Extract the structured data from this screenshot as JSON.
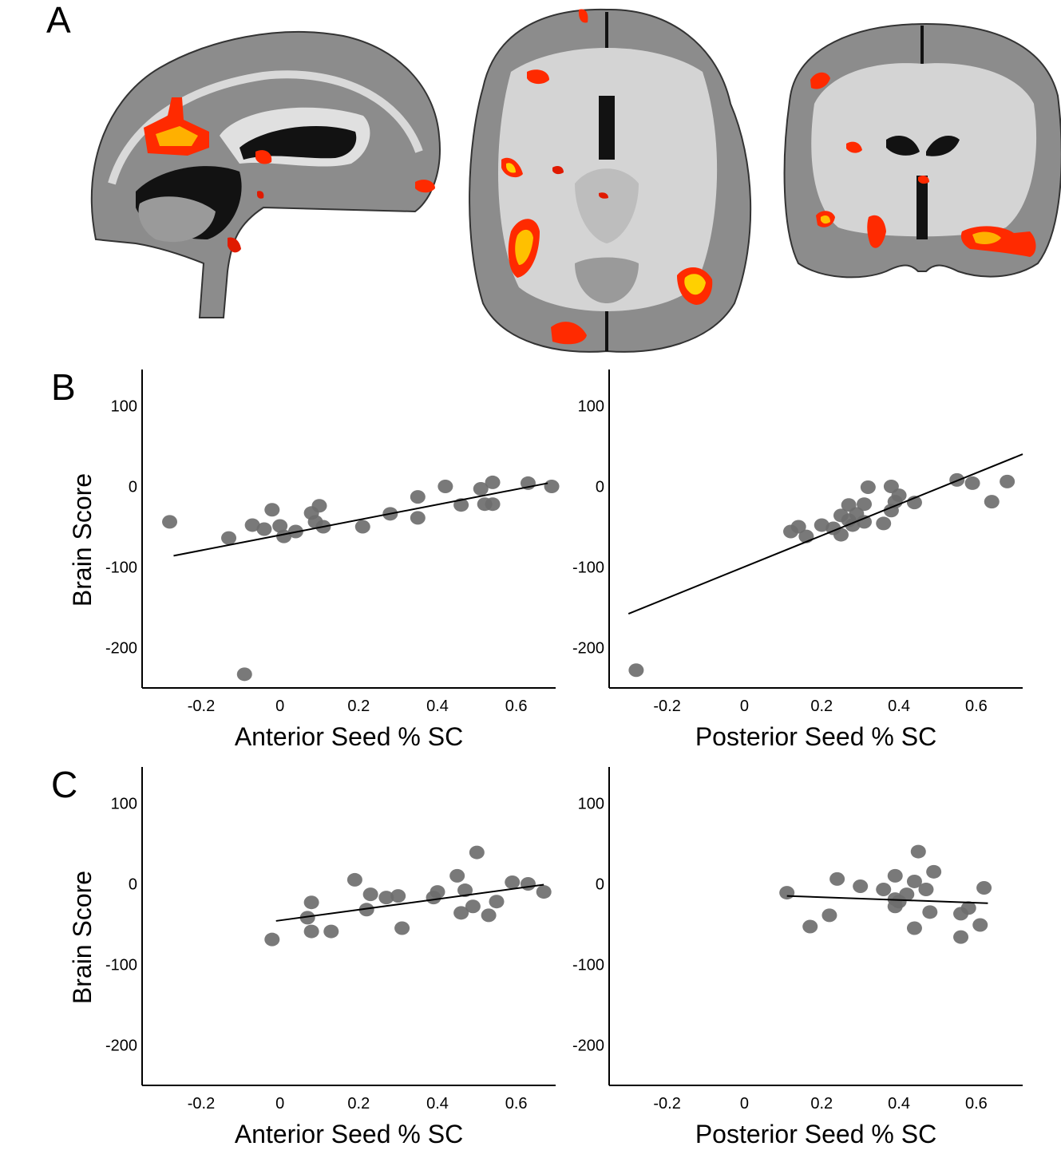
{
  "panels": {
    "a": "A",
    "b": "B",
    "c": "C"
  },
  "colors": {
    "point": "#6e6e6e",
    "line": "#000000",
    "axis": "#000000",
    "brain_fill": "#8c8c8c",
    "brain_white": "#d9d9d9",
    "brain_dark": "#121212",
    "activation_hot": "#ff2a00",
    "activation_core": "#ffd000"
  },
  "chart_data": [
    {
      "id": "b-left",
      "type": "scatter",
      "xlabel": "Anterior Seed % SC",
      "ylabel": "Brain Score",
      "xlim": [
        -0.35,
        0.7
      ],
      "ylim": [
        -250,
        145
      ],
      "xticks": [
        -0.2,
        0,
        0.2,
        0.4,
        0.6
      ],
      "xtick_labels": [
        "-0.2",
        "0",
        "0.2",
        "0.4",
        "0.6"
      ],
      "yticks": [
        100,
        0,
        -100,
        -200
      ],
      "ytick_labels": [
        "100",
        "0",
        "-100",
        "-200"
      ],
      "points": [
        [
          -0.28,
          -44
        ],
        [
          -0.13,
          -64
        ],
        [
          -0.09,
          -233
        ],
        [
          -0.07,
          -48
        ],
        [
          -0.04,
          -53
        ],
        [
          -0.02,
          -29
        ],
        [
          0,
          -49
        ],
        [
          0.01,
          -62
        ],
        [
          0.04,
          -56
        ],
        [
          0.08,
          -33
        ],
        [
          0.09,
          -44
        ],
        [
          0.1,
          -24
        ],
        [
          0.11,
          -50
        ],
        [
          0.21,
          -50
        ],
        [
          0.28,
          -34
        ],
        [
          0.35,
          -13
        ],
        [
          0.35,
          -39
        ],
        [
          0.42,
          0
        ],
        [
          0.46,
          -23
        ],
        [
          0.51,
          -3
        ],
        [
          0.52,
          -22
        ],
        [
          0.54,
          -22
        ],
        [
          0.54,
          5
        ],
        [
          0.63,
          4
        ],
        [
          0.69,
          0
        ]
      ],
      "fit": [
        [
          -0.27,
          -86
        ],
        [
          0.68,
          4
        ]
      ]
    },
    {
      "id": "b-right",
      "type": "scatter",
      "xlabel": "Posterior Seed % SC",
      "ylabel": "",
      "xlim": [
        -0.35,
        0.72
      ],
      "ylim": [
        -250,
        145
      ],
      "xticks": [
        -0.2,
        0,
        0.2,
        0.4,
        0.6
      ],
      "xtick_labels": [
        "-0.2",
        "0",
        "0.2",
        "0.4",
        "0.6"
      ],
      "yticks": [
        100,
        0,
        -100,
        -200
      ],
      "ytick_labels": [
        "100",
        "0",
        "-100",
        "-200"
      ],
      "points": [
        [
          -0.28,
          -228
        ],
        [
          0.12,
          -56
        ],
        [
          0.14,
          -50
        ],
        [
          0.16,
          -62
        ],
        [
          0.2,
          -48
        ],
        [
          0.23,
          -52
        ],
        [
          0.25,
          -36
        ],
        [
          0.25,
          -60
        ],
        [
          0.27,
          -23
        ],
        [
          0.27,
          -42
        ],
        [
          0.28,
          -48
        ],
        [
          0.29,
          -34
        ],
        [
          0.31,
          -22
        ],
        [
          0.31,
          -44
        ],
        [
          0.32,
          -1
        ],
        [
          0.36,
          -46
        ],
        [
          0.38,
          -30
        ],
        [
          0.38,
          0
        ],
        [
          0.39,
          -19
        ],
        [
          0.4,
          -11
        ],
        [
          0.44,
          -20
        ],
        [
          0.55,
          8
        ],
        [
          0.59,
          4
        ],
        [
          0.64,
          -19
        ],
        [
          0.68,
          6
        ]
      ],
      "fit": [
        [
          -0.3,
          -158
        ],
        [
          0.72,
          40
        ]
      ]
    },
    {
      "id": "c-left",
      "type": "scatter",
      "xlabel": "Anterior Seed % SC",
      "ylabel": "Brain Score",
      "xlim": [
        -0.35,
        0.7
      ],
      "ylim": [
        -250,
        145
      ],
      "xticks": [
        -0.2,
        0,
        0.2,
        0.4,
        0.6
      ],
      "xtick_labels": [
        "-0.2",
        "0",
        "0.2",
        "0.4",
        "0.6"
      ],
      "yticks": [
        100,
        0,
        -100,
        -200
      ],
      "ytick_labels": [
        "100",
        "0",
        "-100",
        "-200"
      ],
      "points": [
        [
          -0.02,
          -69
        ],
        [
          0.07,
          -42
        ],
        [
          0.08,
          -23
        ],
        [
          0.08,
          -59
        ],
        [
          0.13,
          -59
        ],
        [
          0.19,
          5
        ],
        [
          0.22,
          -32
        ],
        [
          0.23,
          -13
        ],
        [
          0.27,
          -17
        ],
        [
          0.3,
          -15
        ],
        [
          0.31,
          -55
        ],
        [
          0.39,
          -17
        ],
        [
          0.4,
          -10
        ],
        [
          0.45,
          10
        ],
        [
          0.46,
          -36
        ],
        [
          0.47,
          -8
        ],
        [
          0.49,
          -28
        ],
        [
          0.5,
          39
        ],
        [
          0.53,
          -39
        ],
        [
          0.55,
          -22
        ],
        [
          0.59,
          2
        ],
        [
          0.63,
          0
        ],
        [
          0.67,
          -10
        ]
      ],
      "fit": [
        [
          -0.01,
          -46
        ],
        [
          0.67,
          -1
        ]
      ]
    },
    {
      "id": "c-right",
      "type": "scatter",
      "xlabel": "Posterior Seed % SC",
      "ylabel": "",
      "xlim": [
        -0.35,
        0.72
      ],
      "ylim": [
        -250,
        145
      ],
      "xticks": [
        -0.2,
        0,
        0.2,
        0.4,
        0.6
      ],
      "xtick_labels": [
        "-0.2",
        "0",
        "0.2",
        "0.4",
        "0.6"
      ],
      "yticks": [
        100,
        0,
        -100,
        -200
      ],
      "ytick_labels": [
        "100",
        "0",
        "-100",
        "-200"
      ],
      "points": [
        [
          0.11,
          -11
        ],
        [
          0.17,
          -53
        ],
        [
          0.22,
          -39
        ],
        [
          0.24,
          6
        ],
        [
          0.3,
          -3
        ],
        [
          0.36,
          -7
        ],
        [
          0.39,
          -19
        ],
        [
          0.39,
          -28
        ],
        [
          0.39,
          10
        ],
        [
          0.4,
          -22
        ],
        [
          0.42,
          -13
        ],
        [
          0.44,
          3
        ],
        [
          0.44,
          -55
        ],
        [
          0.45,
          40
        ],
        [
          0.47,
          -7
        ],
        [
          0.48,
          -35
        ],
        [
          0.49,
          15
        ],
        [
          0.56,
          -37
        ],
        [
          0.56,
          -66
        ],
        [
          0.58,
          -30
        ],
        [
          0.61,
          -51
        ],
        [
          0.62,
          -5
        ]
      ],
      "fit": [
        [
          0.11,
          -15
        ],
        [
          0.63,
          -24
        ]
      ]
    }
  ]
}
